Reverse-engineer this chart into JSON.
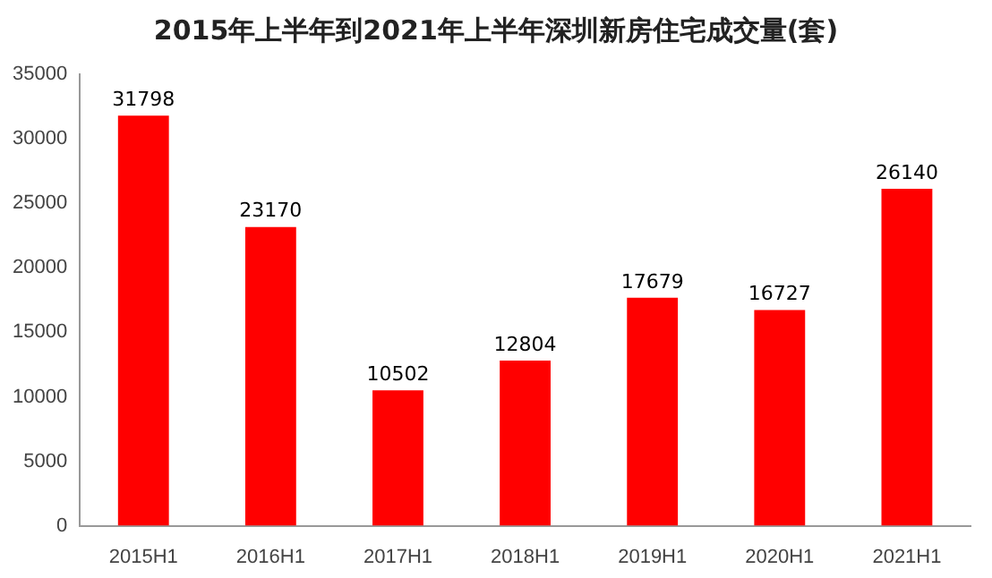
{
  "chart_data": {
    "type": "bar",
    "title": "2015年上半年到2021年上半年深圳新房住宅成交量(套)",
    "categories": [
      "2015H1",
      "2016H1",
      "2017H1",
      "2018H1",
      "2019H1",
      "2020H1",
      "2021H1"
    ],
    "values": [
      31798,
      23170,
      10502,
      12804,
      17679,
      16727,
      26140
    ],
    "color": "#ff0000",
    "ylim": [
      0,
      35000
    ],
    "yticks": [
      0,
      5000,
      10000,
      15000,
      20000,
      25000,
      30000,
      35000
    ],
    "grid": false,
    "data_labels": true
  }
}
